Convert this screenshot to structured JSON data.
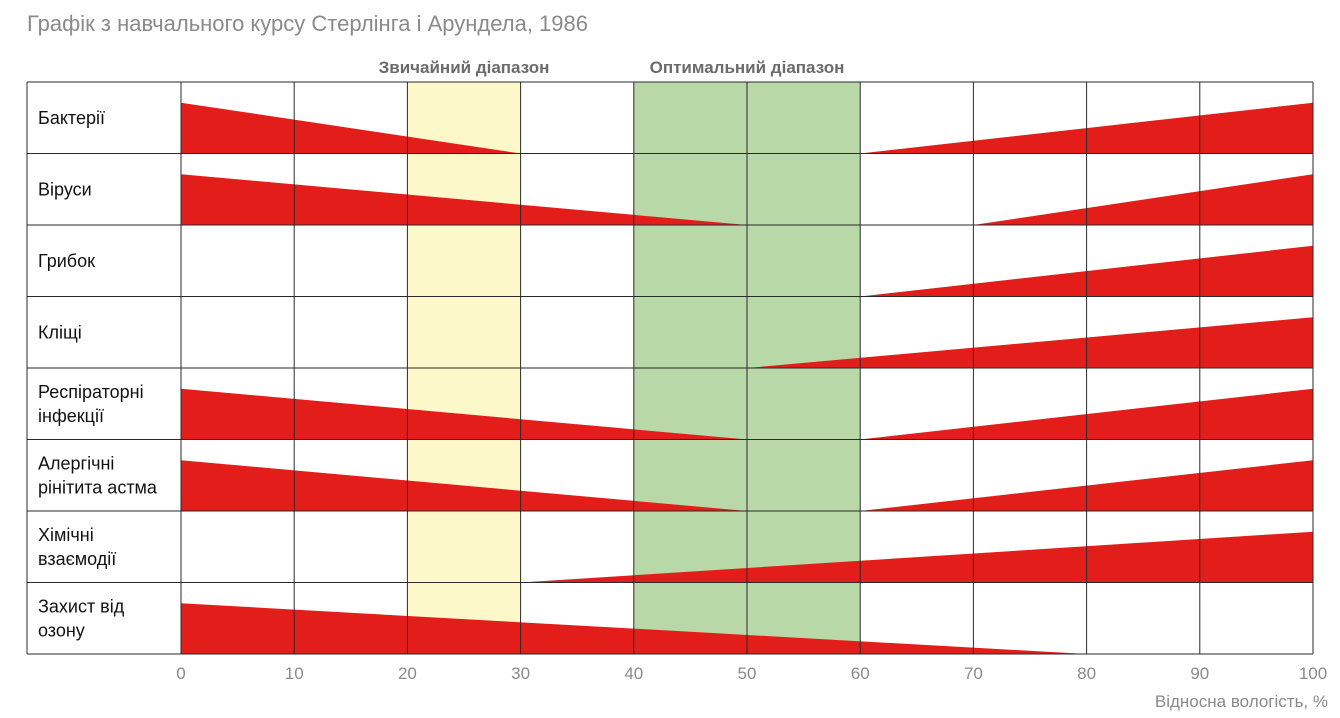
{
  "chart_data": {
    "type": "bar",
    "title": "Графік з навчального курсу Стерлінга і Арундела, 1986",
    "xlabel": "Відносна вологість, %",
    "xlim": [
      0,
      100
    ],
    "x_ticks": [
      "0",
      "10",
      "20",
      "30",
      "40",
      "50",
      "60",
      "70",
      "80",
      "90",
      "100"
    ],
    "x_tick_values": [
      0,
      10,
      20,
      30,
      40,
      50,
      60,
      70,
      80,
      90,
      100
    ],
    "grid": true,
    "zones": [
      {
        "label": "Звичайний діапазон",
        "from": 20,
        "to": 30,
        "color": "#fcf8c9"
      },
      {
        "label": "Оптимальний діапазон",
        "from": 40,
        "to": 60,
        "color": "#b8d8a8"
      }
    ],
    "bar_color": "#e31e1a",
    "categories": [
      "Бактерії",
      "Віруси",
      "Грибок",
      "Кліщі",
      "Респіраторні інфекції",
      "Алергічні рінітита астма",
      "Хімічні взаємодії",
      "Захист від озону"
    ],
    "category_lines": [
      [
        "Бактерії"
      ],
      [
        "Віруси"
      ],
      [
        "Грибок"
      ],
      [
        "Кліщі"
      ],
      [
        "Респіраторні",
        "інфекції"
      ],
      [
        "Алергічні",
        "рінітита астма"
      ],
      [
        "Хімічні",
        "взаємодії"
      ],
      [
        "Захист від",
        "озону"
      ]
    ],
    "series": [
      {
        "category": "Бактерії",
        "decreasing_to": 30,
        "increasing_from": 60
      },
      {
        "category": "Віруси",
        "decreasing_to": 50,
        "increasing_from": 70
      },
      {
        "category": "Грибок",
        "decreasing_to": null,
        "increasing_from": 60
      },
      {
        "category": "Кліщі",
        "decreasing_to": null,
        "increasing_from": 50
      },
      {
        "category": "Респіраторні інфекції",
        "decreasing_to": 50,
        "increasing_from": 60
      },
      {
        "category": "Алергічні рінітита астма",
        "decreasing_to": 50,
        "increasing_from": 60
      },
      {
        "category": "Хімічні взаємодії",
        "decreasing_to": null,
        "increasing_from": 30
      },
      {
        "category": "Захист від озону",
        "decreasing_to": 80,
        "increasing_from": null
      }
    ]
  }
}
